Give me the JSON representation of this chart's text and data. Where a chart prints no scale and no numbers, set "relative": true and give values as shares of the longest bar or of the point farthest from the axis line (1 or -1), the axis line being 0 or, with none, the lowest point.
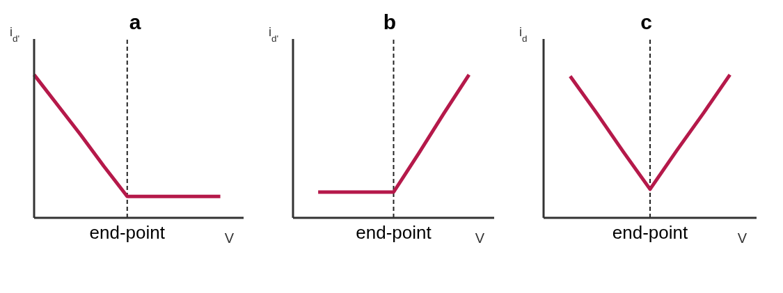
{
  "chart_data": [
    {
      "type": "line",
      "title": "a",
      "xlabel": "V",
      "ylabel": "i$_{d'}$",
      "relative": true,
      "categories": [
        null,
        null,
        null,
        null,
        null,
        null,
        null,
        null,
        null,
        null
      ],
      "series": [
        {
          "color": "#b5194a",
          "values": [
            1,
            0.79,
            0.58,
            0.36,
            0.15,
            0.15,
            0.15,
            0.15,
            0.15,
            null
          ]
        }
      ],
      "annotations": [
        "end-point"
      ],
      "marker": "none",
      "line_style": "solid",
      "grid": false,
      "legend": false
    },
    {
      "type": "line",
      "title": "b",
      "xlabel": "V",
      "ylabel": "i$_{d'}$",
      "relative": true,
      "categories": [
        null,
        null,
        null,
        null,
        null,
        null,
        null,
        null,
        null
      ],
      "series": [
        {
          "color": "#b5194a",
          "values": [
            null,
            0.18,
            0.18,
            0.18,
            0.18,
            0.45,
            0.73,
            1,
            null
          ]
        }
      ],
      "annotations": [
        "end-point"
      ],
      "marker": "none",
      "line_style": "solid",
      "grid": false,
      "legend": false
    },
    {
      "type": "line",
      "title": "c",
      "xlabel": "V",
      "ylabel": "i$_{d}$",
      "relative": true,
      "categories": [
        null,
        null,
        null,
        null,
        null,
        null,
        null,
        null,
        null
      ],
      "series": [
        {
          "color": "#b5194a",
          "values": [
            null,
            0.99,
            0.73,
            0.46,
            0.2,
            0.47,
            0.73,
            1,
            null
          ]
        }
      ],
      "annotations": [
        "end-point"
      ],
      "marker": "none",
      "line_style": "solid",
      "grid": false,
      "legend": false
    }
  ]
}
